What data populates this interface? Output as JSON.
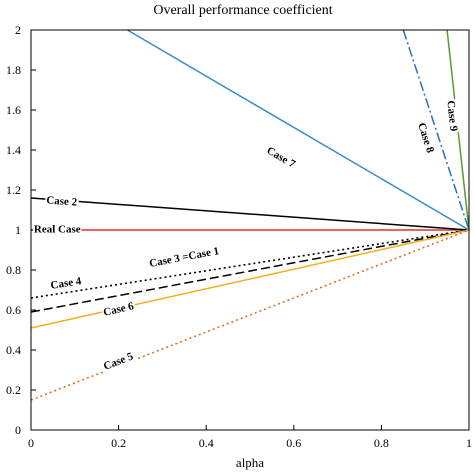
{
  "chart_data": {
    "type": "line",
    "title": "Overall performance coefficient",
    "xlabel": "alpha",
    "ylabel": "",
    "xlim": [
      0,
      1
    ],
    "ylim": [
      0,
      2
    ],
    "x_ticks": [
      "0",
      "0.2",
      "0.4",
      "0.6",
      "0.8",
      "1"
    ],
    "y_ticks": [
      "0",
      "0.2",
      "0.4",
      "0.6",
      "0.8",
      "1",
      "1.2",
      "1.4",
      "1.6",
      "1.8",
      "2"
    ],
    "grid": false,
    "series": [
      {
        "name": "Real Case",
        "color": "#e03030",
        "dash": "solid",
        "x": [
          0,
          1
        ],
        "y": [
          1.0,
          1.0
        ],
        "label_pos": [
          0.06,
          1.0
        ]
      },
      {
        "name": "Case 2",
        "color": "#000000",
        "dash": "solid",
        "x": [
          0,
          1
        ],
        "y": [
          1.16,
          1.0
        ],
        "label_pos": [
          0.07,
          1.14
        ]
      },
      {
        "name": "Case 7",
        "color": "#3a8ad0",
        "dash": "solid",
        "x": [
          0.22,
          1
        ],
        "y": [
          2.0,
          1.0
        ],
        "label_pos": [
          0.57,
          1.36
        ]
      },
      {
        "name": "Case 3 =Case 1",
        "color": "#000000",
        "dash": "longdash",
        "x": [
          0,
          1
        ],
        "y": [
          0.59,
          1.0
        ],
        "label_pos": [
          0.35,
          0.86
        ]
      },
      {
        "name": "Case 4",
        "color": "#000000",
        "dash": "dotted",
        "x": [
          0,
          1
        ],
        "y": [
          0.66,
          1.0
        ],
        "label_pos": [
          0.08,
          0.73
        ]
      },
      {
        "name": "Case 6",
        "color": "#f0b020",
        "dash": "solid",
        "x": [
          0,
          1
        ],
        "y": [
          0.51,
          1.0
        ],
        "label_pos": [
          0.2,
          0.6
        ]
      },
      {
        "name": "Case 5",
        "color": "#e07020",
        "dash": "dotted",
        "x": [
          0,
          1
        ],
        "y": [
          0.15,
          1.0
        ],
        "label_pos": [
          0.2,
          0.34
        ]
      },
      {
        "name": "Case 8",
        "color": "#2a6fbf",
        "dash": "dashdot",
        "x": [
          0.85,
          1
        ],
        "y": [
          2.0,
          1.0
        ],
        "label_pos": [
          0.9,
          1.46
        ]
      },
      {
        "name": "Case 9",
        "color": "#5a9a30",
        "dash": "solid",
        "x": [
          0.95,
          1
        ],
        "y": [
          2.0,
          1.0
        ],
        "label_pos": [
          0.96,
          1.57
        ]
      }
    ]
  }
}
